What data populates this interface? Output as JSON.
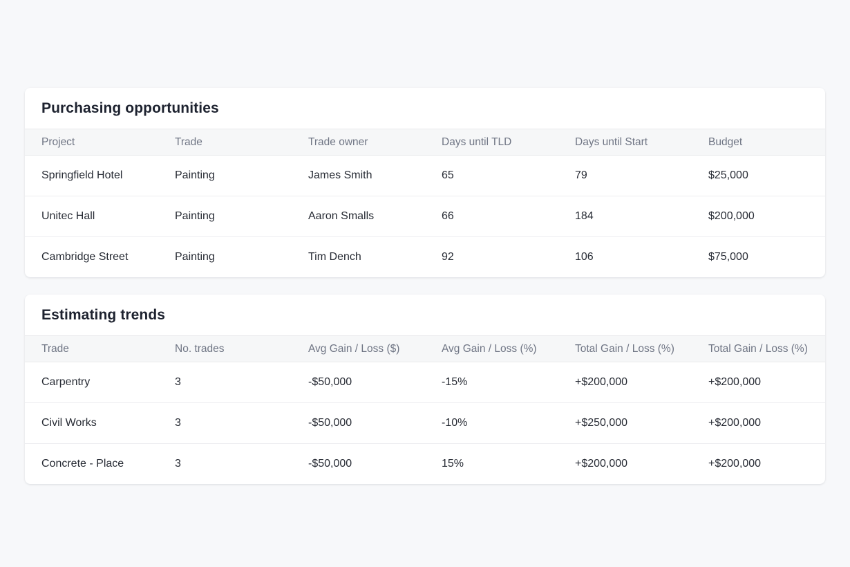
{
  "colors": {
    "page_background": "#f7f8fa",
    "card_background": "#ffffff",
    "negative": "#e2402f",
    "positive": "#27a737",
    "header_text": "#6f7584",
    "body_text": "#272b34",
    "title_text": "#1d222f"
  },
  "purchasing": {
    "title": "Purchasing opportunities",
    "columns": [
      "Project",
      "Trade",
      "Trade owner",
      "Days until TLD",
      "Days until Start",
      "Budget"
    ],
    "rows": [
      {
        "project": "Springfield Hotel",
        "trade": "Painting",
        "trade_owner": "James Smith",
        "days_until_tld": "65",
        "days_until_start": "79",
        "budget": "$25,000"
      },
      {
        "project": "Unitec Hall",
        "trade": "Painting",
        "trade_owner": "Aaron Smalls",
        "days_until_tld": "66",
        "days_until_start": "184",
        "budget": "$200,000"
      },
      {
        "project": "Cambridge Street",
        "trade": "Painting",
        "trade_owner": "Tim Dench",
        "days_until_tld": "92",
        "days_until_start": "106",
        "budget": "$75,000"
      }
    ]
  },
  "estimating": {
    "title": "Estimating trends",
    "columns": [
      "Trade",
      "No. trades",
      "Avg Gain / Loss ($)",
      "Avg Gain / Loss (%)",
      "Total Gain / Loss (%)",
      "Total Gain / Loss (%)"
    ],
    "rows": [
      {
        "trade": "Carpentry",
        "no_trades": "3",
        "avg_gain_loss_usd": {
          "text": "-$50,000",
          "tone": "negative"
        },
        "avg_gain_loss_pct": {
          "text": "-15%",
          "tone": "negative"
        },
        "total_gain_loss_pct_1": {
          "text": "+$200,000",
          "tone": "positive"
        },
        "total_gain_loss_pct_2": {
          "text": "+$200,000",
          "tone": "positive"
        }
      },
      {
        "trade": "Civil Works",
        "no_trades": "3",
        "avg_gain_loss_usd": {
          "text": "-$50,000",
          "tone": "negative"
        },
        "avg_gain_loss_pct": {
          "text": "-10%",
          "tone": "negative"
        },
        "total_gain_loss_pct_1": {
          "text": "+$250,000",
          "tone": "positive"
        },
        "total_gain_loss_pct_2": {
          "text": "+$200,000",
          "tone": "positive"
        }
      },
      {
        "trade": "Concrete - Place",
        "no_trades": "3",
        "avg_gain_loss_usd": {
          "text": "-$50,000",
          "tone": "negative"
        },
        "avg_gain_loss_pct": {
          "text": "15%",
          "tone": "positive"
        },
        "total_gain_loss_pct_1": {
          "text": "+$200,000",
          "tone": "positive"
        },
        "total_gain_loss_pct_2": {
          "text": "+$200,000",
          "tone": "positive"
        }
      }
    ]
  }
}
